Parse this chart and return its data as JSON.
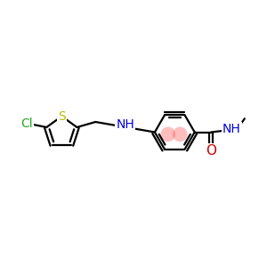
{
  "bg": "#ffffff",
  "bc": "#000000",
  "bw": 1.6,
  "colors": {
    "S": "#b8b800",
    "Cl": "#22aa22",
    "N": "#0000dd",
    "O": "#cc0000"
  },
  "hl_color": "#ff5555",
  "hl_alpha": 0.38,
  "fs": 10.0,
  "xlim": [
    0,
    10
  ],
  "ylim": [
    2,
    8
  ]
}
